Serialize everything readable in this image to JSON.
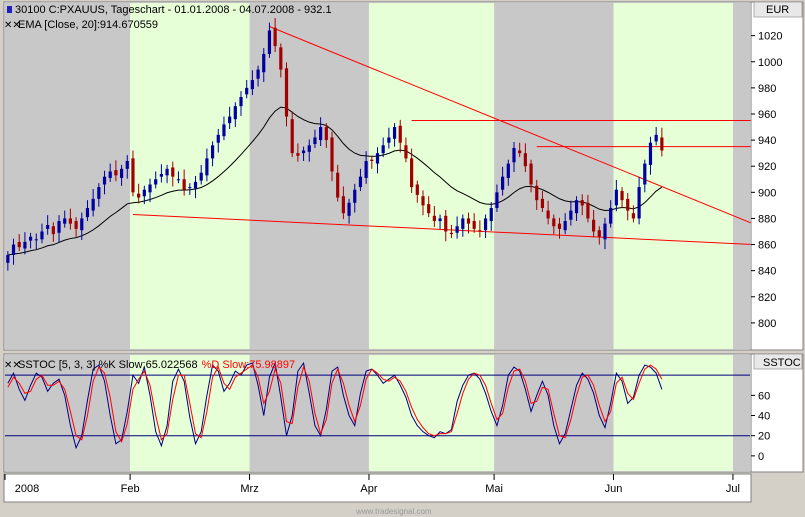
{
  "header": {
    "title": "30100  C:PXAUUS, Tageschart - 01.01.2008 - 04.07.2008 - 932.1",
    "indicator": "EMA [Close, 20]:914.670559"
  },
  "price_panel": {
    "axis_label": "EUR"
  },
  "stoch_panel": {
    "axis_label": "SSTOC",
    "legend_prefix": "SSTOC [5, 3, 3] ",
    "k_label": "%K Slow:65.022568",
    "d_label": "%D Slow:75.98897"
  },
  "footer": {
    "watermark": "www.tradesignal.com"
  },
  "colors": {
    "band_gray": "#c8c8c8",
    "band_green": "#e6ffd6",
    "up_candle": "#0000a0",
    "down_candle": "#a00000",
    "trend": "#ff0000",
    "ema": "#000000",
    "k_line": "#000080",
    "d_line": "#ff0000",
    "stoch_levels": "#000080"
  },
  "chart_data": [
    {
      "type": "candlestick",
      "title": "30100  C:PXAUUS, Tageschart - 01.01.2008 - 04.07.2008 - 932.1",
      "ylabel": "EUR",
      "ylim": [
        780,
        1045
      ],
      "y_ticks": [
        800,
        820,
        840,
        860,
        880,
        900,
        920,
        940,
        960,
        980,
        1000,
        1020
      ],
      "x_ticks": [
        {
          "label": "2008",
          "day": 0
        },
        {
          "label": "Feb",
          "day": 22
        },
        {
          "label": "Mrz",
          "day": 43
        },
        {
          "label": "Apr",
          "day": 64
        },
        {
          "label": "Mai",
          "day": 86
        },
        {
          "label": "Jun",
          "day": 107
        },
        {
          "label": "Jul",
          "day": 128
        }
      ],
      "days_total": 131,
      "month_bands": [
        {
          "start": 0,
          "end": 22,
          "fill": "gray"
        },
        {
          "start": 22,
          "end": 43,
          "fill": "green"
        },
        {
          "start": 43,
          "end": 64,
          "fill": "gray"
        },
        {
          "start": 64,
          "end": 86,
          "fill": "green"
        },
        {
          "start": 86,
          "end": 107,
          "fill": "gray"
        },
        {
          "start": 107,
          "end": 128,
          "fill": "green"
        },
        {
          "start": 128,
          "end": 131,
          "fill": "gray"
        }
      ],
      "close": [
        852,
        860,
        858,
        862,
        866,
        864,
        870,
        875,
        868,
        878,
        880,
        876,
        872,
        880,
        888,
        895,
        904,
        912,
        916,
        913,
        918,
        924,
        900,
        896,
        902,
        906,
        910,
        914,
        918,
        912,
        910,
        902,
        904,
        908,
        915,
        926,
        936,
        944,
        952,
        958,
        966,
        973,
        980,
        986,
        994,
        1006,
        1024,
        1012,
        994,
        958,
        930,
        928,
        932,
        936,
        942,
        950,
        940,
        916,
        896,
        884,
        892,
        902,
        912,
        924,
        924,
        930,
        936,
        942,
        950,
        938,
        926,
        904,
        898,
        890,
        884,
        878,
        880,
        870,
        868,
        874,
        880,
        876,
        872,
        870,
        880,
        888,
        900,
        912,
        922,
        934,
        930,
        920,
        906,
        894,
        888,
        880,
        874,
        872,
        878,
        886,
        894,
        890,
        880,
        870,
        866,
        876,
        888,
        902,
        894,
        886,
        880,
        904,
        922,
        938,
        944,
        932
      ],
      "ema_label": "EMA [Close, 20]:914.670559",
      "trendlines": [
        {
          "name": "upper",
          "from": [
            46,
            1027
          ],
          "to": [
            131,
            876
          ]
        },
        {
          "name": "lower",
          "from": [
            22,
            883
          ],
          "to": [
            131,
            860
          ]
        },
        {
          "name": "resistance",
          "from": [
            71,
            955
          ],
          "to": [
            131,
            955
          ]
        },
        {
          "name": "resistance",
          "from": [
            93,
            935
          ],
          "to": [
            131,
            935
          ]
        }
      ]
    },
    {
      "type": "line",
      "title": "SSTOC [5, 3, 3] %K Slow:65.022568 %D Slow:75.98897",
      "ylabel": "SSTOC",
      "ylim": [
        -15,
        100
      ],
      "y_ticks": [
        0,
        20,
        40,
        60
      ],
      "levels": [
        20,
        80
      ],
      "series": [
        {
          "name": "%K Slow",
          "values": [
            72,
            82,
            66,
            55,
            70,
            82,
            78,
            64,
            72,
            76,
            60,
            30,
            8,
            20,
            55,
            86,
            90,
            74,
            40,
            12,
            16,
            44,
            80,
            72,
            88,
            60,
            24,
            10,
            30,
            74,
            86,
            74,
            38,
            12,
            24,
            60,
            90,
            84,
            64,
            72,
            84,
            80,
            90,
            92,
            70,
            40,
            78,
            92,
            58,
            20,
            40,
            84,
            92,
            62,
            30,
            20,
            46,
            84,
            88,
            60,
            40,
            30,
            62,
            84,
            86,
            80,
            72,
            76,
            80,
            70,
            58,
            40,
            30,
            24,
            20,
            18,
            24,
            22,
            26,
            54,
            70,
            80,
            82,
            76,
            62,
            44,
            30,
            50,
            80,
            88,
            84,
            66,
            44,
            60,
            74,
            60,
            30,
            12,
            22,
            46,
            70,
            82,
            76,
            62,
            40,
            28,
            52,
            82,
            74,
            52,
            58,
            80,
            90,
            88,
            82,
            66
          ]
        },
        {
          "name": "%D Slow",
          "values": [
            68,
            78,
            72,
            62,
            64,
            76,
            80,
            70,
            70,
            74,
            66,
            44,
            20,
            16,
            40,
            74,
            88,
            82,
            58,
            24,
            14,
            32,
            66,
            76,
            84,
            70,
            40,
            16,
            22,
            56,
            80,
            80,
            52,
            22,
            18,
            44,
            78,
            88,
            72,
            66,
            78,
            82,
            86,
            90,
            78,
            52,
            64,
            86,
            72,
            34,
            32,
            68,
            88,
            74,
            42,
            22,
            36,
            72,
            86,
            72,
            50,
            34,
            50,
            76,
            86,
            82,
            76,
            74,
            78,
            74,
            64,
            48,
            36,
            28,
            22,
            20,
            22,
            22,
            24,
            42,
            62,
            76,
            82,
            80,
            70,
            52,
            36,
            42,
            68,
            84,
            86,
            74,
            52,
            54,
            68,
            66,
            42,
            20,
            18,
            36,
            60,
            78,
            80,
            70,
            50,
            34,
            44,
            72,
            78,
            62,
            56,
            72,
            86,
            90,
            86,
            76
          ]
        }
      ]
    }
  ]
}
